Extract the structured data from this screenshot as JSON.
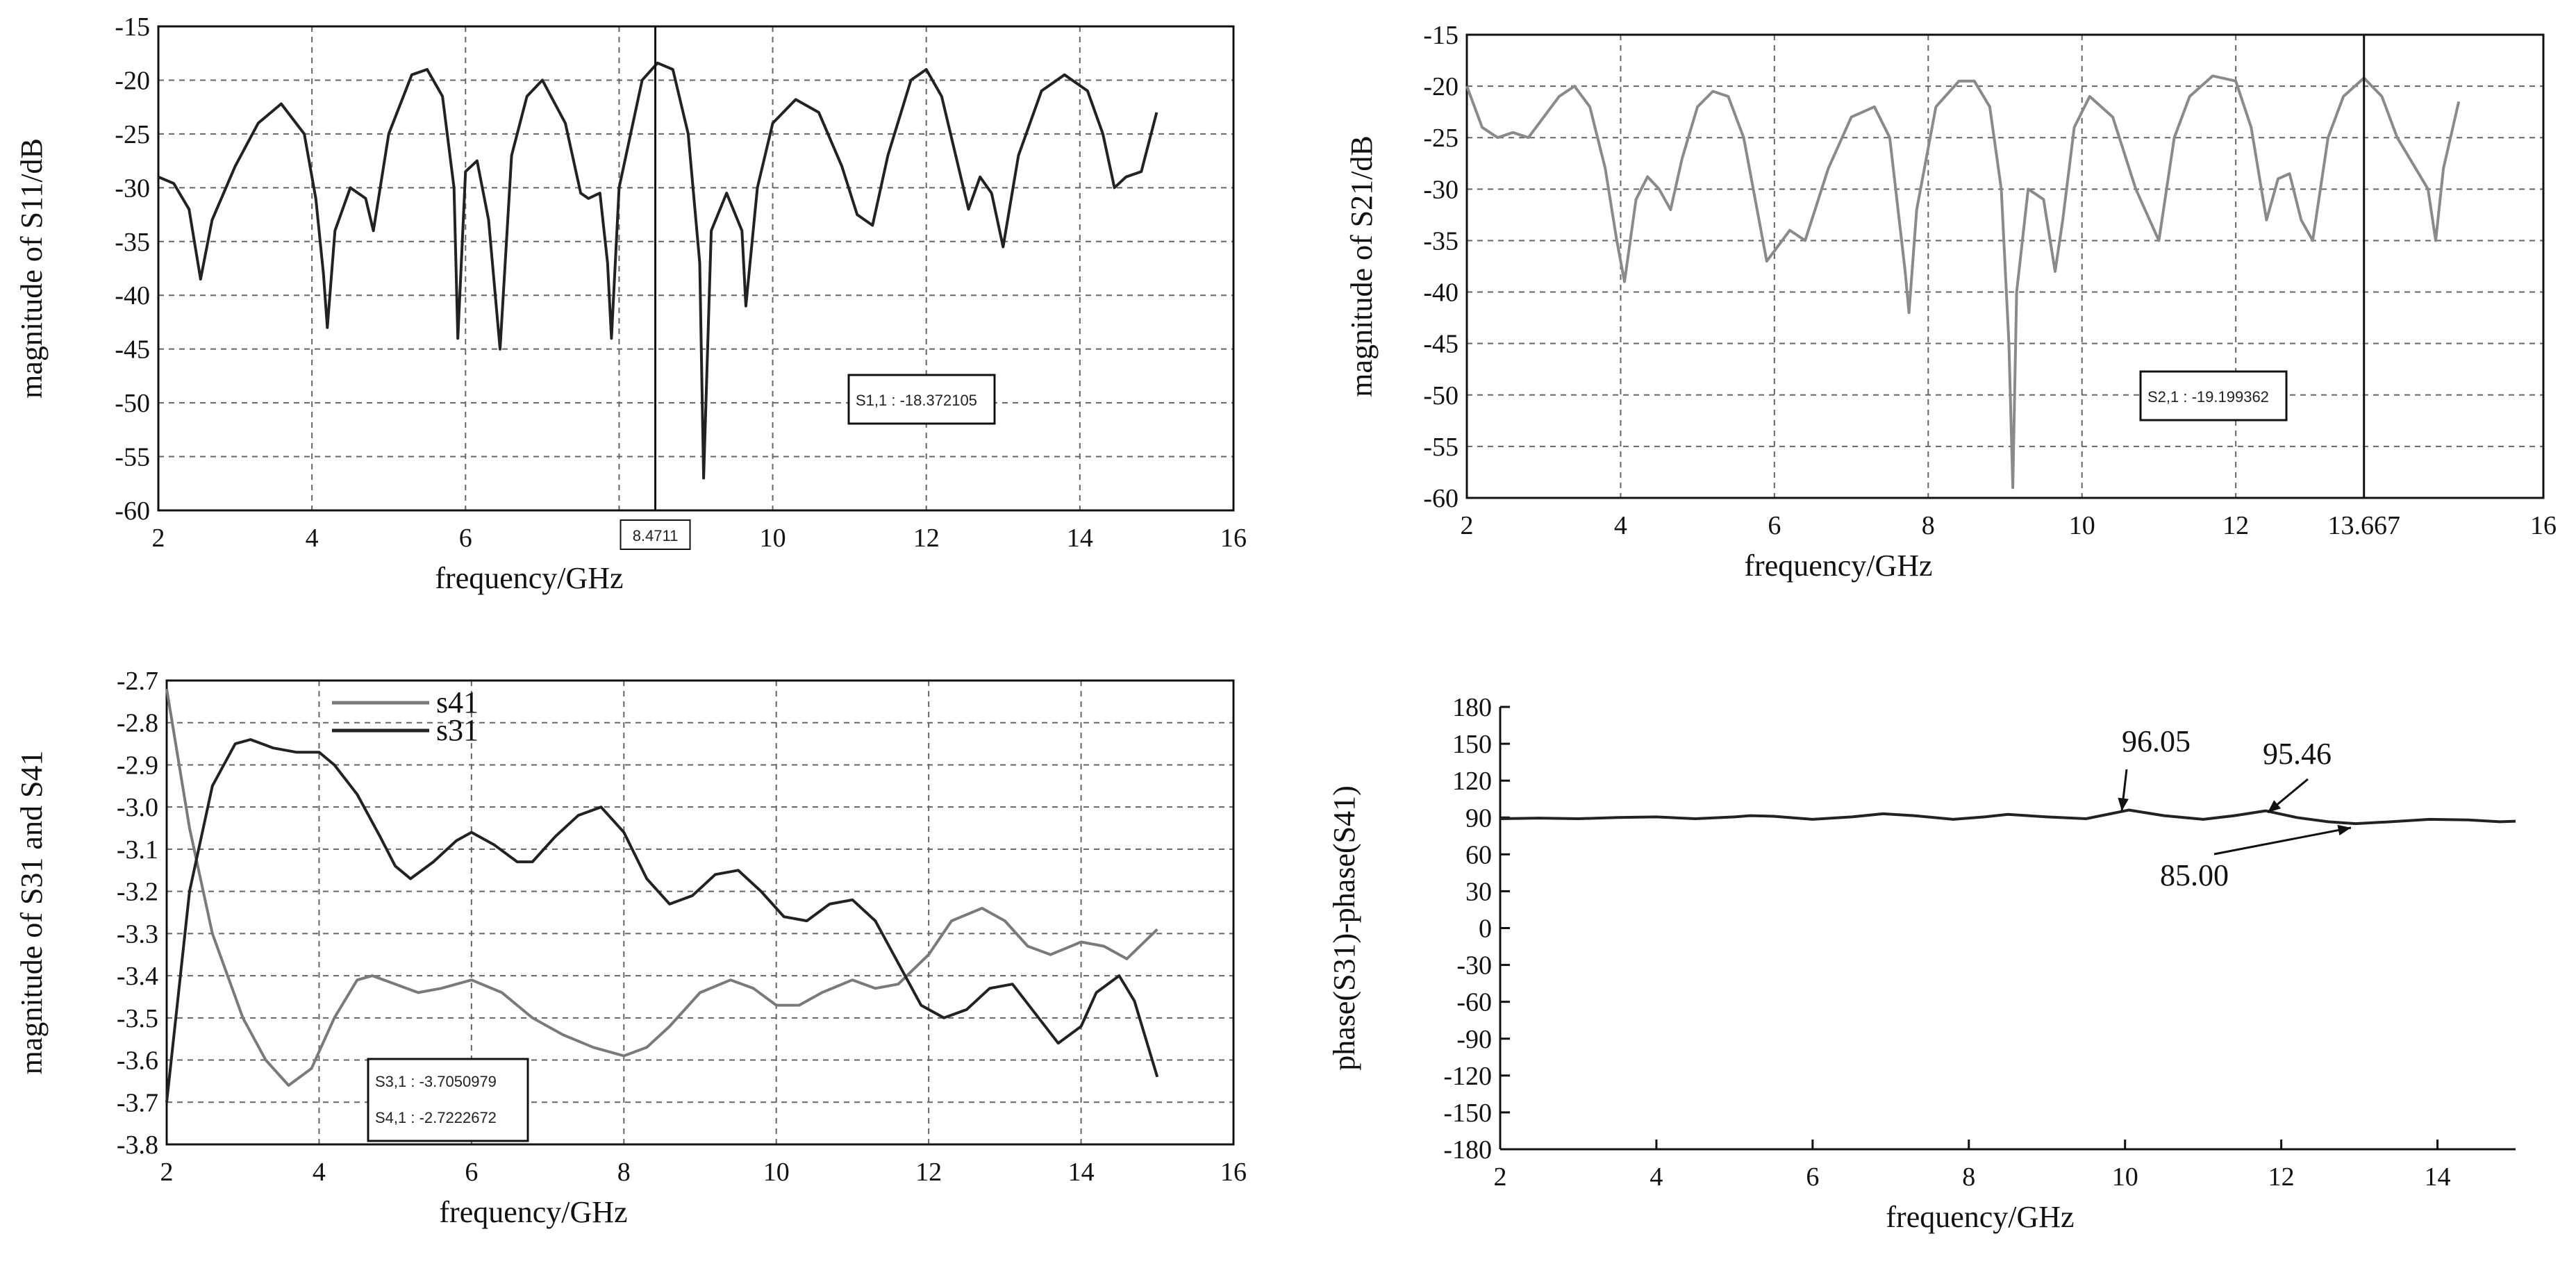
{
  "chart_data": [
    {
      "type": "line",
      "xlabel": "frequency/GHz",
      "ylabel": "magnitude of S11/dB",
      "xlim": [
        2,
        16
      ],
      "ylim": [
        -60,
        -15
      ],
      "xticks": [
        "2",
        "4",
        "6",
        "8",
        "10",
        "12",
        "14",
        "16"
      ],
      "yticks": [
        "-15",
        "-20",
        "-25",
        "-30",
        "-35",
        "-40",
        "-45",
        "-50",
        "-55",
        "-60"
      ],
      "grid": true,
      "series": [
        {
          "color": "#222222",
          "x": [
            2.0,
            2.2,
            2.4,
            2.55,
            2.7,
            3.0,
            3.3,
            3.6,
            3.9,
            4.05,
            4.15,
            4.2,
            4.3,
            4.5,
            4.7,
            4.8,
            5.0,
            5.3,
            5.5,
            5.7,
            5.85,
            5.9,
            6.0,
            6.15,
            6.3,
            6.45,
            6.6,
            6.8,
            7.0,
            7.3,
            7.5,
            7.6,
            7.75,
            7.85,
            7.9,
            8.0,
            8.3,
            8.5,
            8.7,
            8.9,
            9.05,
            9.1,
            9.2,
            9.4,
            9.6,
            9.65,
            9.8,
            10.0,
            10.3,
            10.6,
            10.9,
            11.1,
            11.3,
            11.5,
            11.8,
            12.0,
            12.2,
            12.4,
            12.55,
            12.7,
            12.85,
            13.0,
            13.2,
            13.5,
            13.8,
            14.1,
            14.3,
            14.45,
            14.6,
            14.8,
            15.0
          ],
          "y": [
            -29.0,
            -29.6,
            -32.0,
            -38.5,
            -33.0,
            -28.0,
            -24.0,
            -22.2,
            -25.0,
            -31.0,
            -38.0,
            -43.0,
            -34.0,
            -30.0,
            -31.0,
            -34.0,
            -25.0,
            -19.5,
            -19.0,
            -21.5,
            -30.0,
            -44.0,
            -28.5,
            -27.5,
            -33.0,
            -45.0,
            -27.0,
            -21.5,
            -20.0,
            -24.0,
            -30.5,
            -31.0,
            -30.5,
            -37.0,
            -44.0,
            -30.0,
            -20.0,
            -18.4,
            -19.0,
            -25.0,
            -37.0,
            -57.0,
            -34.0,
            -30.5,
            -34.0,
            -41.0,
            -30.0,
            -24.0,
            -21.8,
            -23.0,
            -28.0,
            -32.5,
            -33.5,
            -27.0,
            -20.0,
            -19.0,
            -21.5,
            -27.5,
            -32.0,
            -29.0,
            -30.5,
            -35.5,
            -27.0,
            -21.0,
            -19.5,
            -21.0,
            -25.0,
            -30.0,
            -29.0,
            -28.5,
            -23.0
          ]
        }
      ],
      "marker": {
        "x": 8.4711,
        "x_label": "8.4711",
        "readout": "S1,1 : -18.372105"
      }
    },
    {
      "type": "line",
      "xlabel": "frequency/GHz",
      "ylabel": "magnitude of S21/dB",
      "xlim": [
        2,
        16
      ],
      "ylim": [
        -60,
        -15
      ],
      "xticks": [
        "2",
        "4",
        "6",
        "8",
        "10",
        "12",
        "13.667",
        "16"
      ],
      "xtick_values": [
        2,
        4,
        6,
        8,
        10,
        12,
        13.667,
        16
      ],
      "yticks": [
        "-15",
        "-20",
        "-25",
        "-30",
        "-35",
        "-40",
        "-45",
        "-50",
        "-55",
        "-60"
      ],
      "grid": true,
      "series": [
        {
          "color": "#8a8a8a",
          "x": [
            2.0,
            2.2,
            2.4,
            2.6,
            2.8,
            3.0,
            3.2,
            3.4,
            3.6,
            3.8,
            3.95,
            4.05,
            4.2,
            4.35,
            4.5,
            4.65,
            4.8,
            5.0,
            5.2,
            5.4,
            5.6,
            5.75,
            5.9,
            6.0,
            6.2,
            6.4,
            6.7,
            7.0,
            7.3,
            7.5,
            7.7,
            7.75,
            7.85,
            8.1,
            8.4,
            8.6,
            8.8,
            8.95,
            9.05,
            9.1,
            9.15,
            9.3,
            9.5,
            9.65,
            9.75,
            9.9,
            10.1,
            10.4,
            10.7,
            11.0,
            11.2,
            11.4,
            11.7,
            12.0,
            12.2,
            12.4,
            12.55,
            12.7,
            12.85,
            13.0,
            13.2,
            13.4,
            13.667,
            13.9,
            14.1,
            14.3,
            14.5,
            14.6,
            14.7,
            14.9
          ],
          "y": [
            -20.0,
            -24.0,
            -25.0,
            -24.5,
            -25.0,
            -23.0,
            -21.0,
            -20.0,
            -22.0,
            -28.0,
            -35.0,
            -39.0,
            -31.0,
            -28.8,
            -30.0,
            -32.0,
            -27.0,
            -22.0,
            -20.5,
            -21.0,
            -25.0,
            -31.0,
            -37.0,
            -36.0,
            -34.0,
            -35.0,
            -28.0,
            -23.0,
            -22.0,
            -25.0,
            -38.0,
            -42.0,
            -32.0,
            -22.0,
            -19.5,
            -19.5,
            -22.0,
            -30.0,
            -45.0,
            -59.0,
            -40.0,
            -30.0,
            -31.0,
            -38.0,
            -33.0,
            -24.0,
            -21.0,
            -23.0,
            -30.0,
            -35.0,
            -25.0,
            -21.0,
            -19.0,
            -19.5,
            -24.0,
            -33.0,
            -29.0,
            -28.5,
            -33.0,
            -35.0,
            -25.0,
            -21.0,
            -19.2,
            -21.0,
            -25.0,
            -27.5,
            -30.0,
            -35.0,
            -28.0,
            -21.5
          ]
        }
      ],
      "marker": {
        "x": 13.667,
        "readout": "S2,1 : -19.199362"
      }
    },
    {
      "type": "line",
      "xlabel": "frequency/GHz",
      "ylabel": "magnitude of S31 and S41",
      "xlim": [
        2,
        16
      ],
      "ylim": [
        -3.8,
        -2.7
      ],
      "xticks": [
        "2",
        "4",
        "6",
        "8",
        "10",
        "12",
        "14",
        "16"
      ],
      "yticks": [
        "-2.7",
        "-2.8",
        "-2.9",
        "-3.0",
        "-3.1",
        "-3.2",
        "-3.3",
        "-3.4",
        "-3.5",
        "-3.6",
        "-3.7",
        "-3.8"
      ],
      "grid": true,
      "legend": "top-left",
      "series": [
        {
          "name": "s41",
          "color": "#7a7a7a",
          "x": [
            2.0,
            2.3,
            2.6,
            3.0,
            3.3,
            3.6,
            3.9,
            4.2,
            4.5,
            4.7,
            5.0,
            5.3,
            5.6,
            6.0,
            6.4,
            6.8,
            7.2,
            7.6,
            8.0,
            8.3,
            8.6,
            9.0,
            9.4,
            9.7,
            10.0,
            10.3,
            10.6,
            11.0,
            11.3,
            11.6,
            12.0,
            12.3,
            12.7,
            13.0,
            13.3,
            13.6,
            14.0,
            14.3,
            14.6,
            15.0
          ],
          "y": [
            -2.72,
            -3.05,
            -3.3,
            -3.5,
            -3.6,
            -3.66,
            -3.62,
            -3.5,
            -3.41,
            -3.4,
            -3.42,
            -3.44,
            -3.43,
            -3.41,
            -3.44,
            -3.5,
            -3.54,
            -3.57,
            -3.59,
            -3.57,
            -3.52,
            -3.44,
            -3.41,
            -3.43,
            -3.47,
            -3.47,
            -3.44,
            -3.41,
            -3.43,
            -3.42,
            -3.35,
            -3.27,
            -3.24,
            -3.27,
            -3.33,
            -3.35,
            -3.32,
            -3.33,
            -3.36,
            -3.29
          ]
        },
        {
          "name": "s31",
          "color": "#222222",
          "x": [
            2.0,
            2.3,
            2.6,
            2.9,
            3.1,
            3.4,
            3.7,
            4.0,
            4.2,
            4.5,
            4.8,
            5.0,
            5.2,
            5.5,
            5.8,
            6.0,
            6.3,
            6.6,
            6.8,
            7.1,
            7.4,
            7.7,
            8.0,
            8.3,
            8.6,
            8.9,
            9.2,
            9.5,
            9.8,
            10.1,
            10.4,
            10.7,
            11.0,
            11.3,
            11.6,
            11.9,
            12.2,
            12.5,
            12.8,
            13.1,
            13.4,
            13.7,
            14.0,
            14.2,
            14.5,
            14.7,
            15.0
          ],
          "y": [
            -3.7,
            -3.2,
            -2.95,
            -2.85,
            -2.84,
            -2.86,
            -2.87,
            -2.87,
            -2.9,
            -2.97,
            -3.07,
            -3.14,
            -3.17,
            -3.13,
            -3.08,
            -3.06,
            -3.09,
            -3.13,
            -3.13,
            -3.07,
            -3.02,
            -3.0,
            -3.06,
            -3.17,
            -3.23,
            -3.21,
            -3.16,
            -3.15,
            -3.2,
            -3.26,
            -3.27,
            -3.23,
            -3.22,
            -3.27,
            -3.37,
            -3.47,
            -3.5,
            -3.48,
            -3.43,
            -3.42,
            -3.49,
            -3.56,
            -3.52,
            -3.44,
            -3.4,
            -3.46,
            -3.64
          ]
        }
      ],
      "readout": [
        "S3,1 : -3.7050979",
        "S4,1 : -2.7222672"
      ]
    },
    {
      "type": "line",
      "xlabel": "frequency/GHz",
      "ylabel": "phase(S31)-phase(S41)",
      "xlim": [
        2,
        15
      ],
      "ylim": [
        -180,
        180
      ],
      "xticks": [
        "2",
        "4",
        "6",
        "8",
        "10",
        "12",
        "14"
      ],
      "yticks": [
        "180",
        "150",
        "120",
        "90",
        "60",
        "30",
        "0",
        "-30",
        "-60",
        "-90",
        "-120",
        "-150",
        "-180"
      ],
      "grid": false,
      "series": [
        {
          "color": "#222222",
          "x": [
            2.0,
            2.5,
            3.0,
            3.5,
            4.0,
            4.5,
            5.0,
            5.2,
            5.5,
            6.0,
            6.5,
            6.9,
            7.3,
            7.8,
            8.2,
            8.5,
            9.0,
            9.5,
            10.05,
            10.5,
            11.0,
            11.4,
            11.8,
            12.2,
            12.6,
            12.95,
            13.4,
            13.9,
            14.4,
            14.8,
            15.0
          ],
          "y": [
            89,
            89.5,
            89,
            90,
            90.5,
            89,
            90.5,
            91.5,
            91,
            88.5,
            90.5,
            93,
            91.5,
            88.5,
            90.5,
            92.5,
            90.5,
            89,
            96.05,
            91.5,
            88.5,
            91.5,
            95.46,
            90,
            86.5,
            85.0,
            86.5,
            88.5,
            88,
            86.5,
            87
          ]
        }
      ],
      "annotations": [
        {
          "text": "96.05",
          "x": 10.05,
          "y": 96.05
        },
        {
          "text": "95.46",
          "x": 11.8,
          "y": 95.46
        },
        {
          "text": "85.00",
          "x": 12.95,
          "y": 85.0
        }
      ]
    }
  ]
}
